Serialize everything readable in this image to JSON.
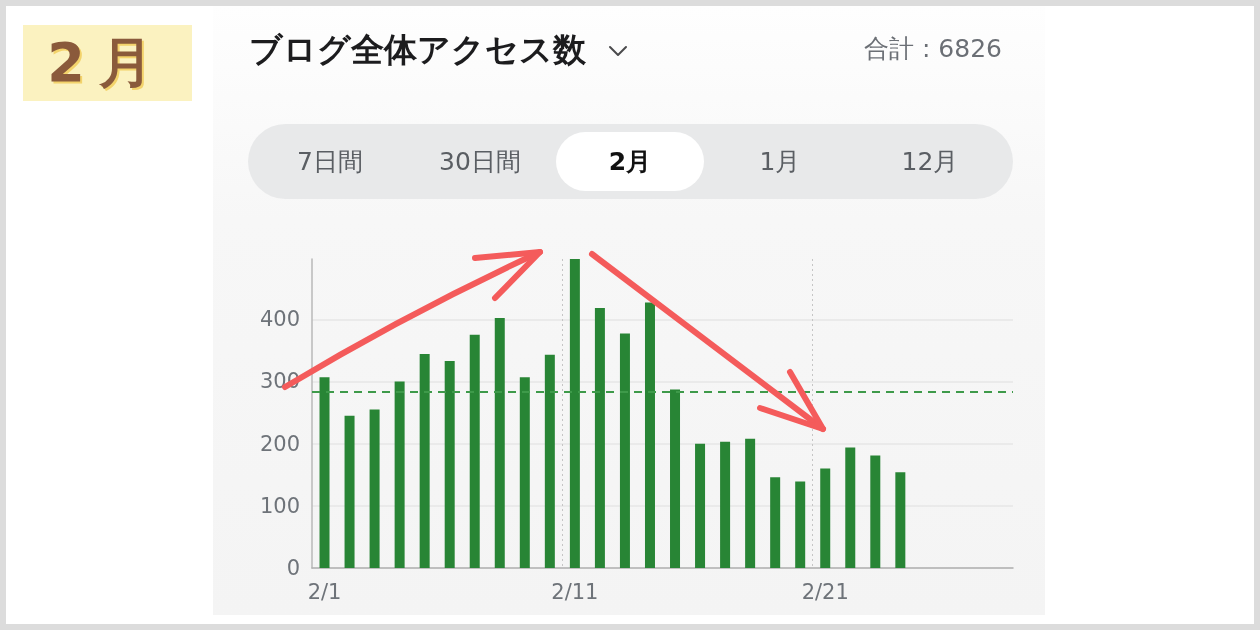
{
  "chart_data": {
    "type": "bar",
    "title": "ブログ全体アクセス数",
    "annotations": [
      "2月",
      "合計 : 6826",
      "7日間",
      "30日間",
      "2月",
      "1月",
      "12月"
    ],
    "categories": [
      "2/1",
      null,
      null,
      null,
      null,
      null,
      null,
      null,
      null,
      null,
      "2/11",
      null,
      null,
      null,
      null,
      null,
      null,
      null,
      null,
      null,
      "2/21",
      null,
      null,
      null,
      null,
      null,
      null,
      null
    ],
    "values": [
      307,
      245,
      255,
      300,
      344,
      333,
      375,
      402,
      307,
      343,
      497,
      418,
      377,
      427,
      287,
      200,
      203,
      208,
      146,
      139,
      160,
      194,
      181,
      154,
      null,
      null,
      null,
      null
    ],
    "color": "#288535",
    "ylim": [
      0,
      497
    ],
    "yticks": [
      0,
      100,
      200,
      300,
      400
    ],
    "grid": true,
    "ref_lines": [
      {
        "axis": "y",
        "value": 284,
        "color": "#3e9a4a",
        "line_style": "dashed"
      }
    ]
  }
}
